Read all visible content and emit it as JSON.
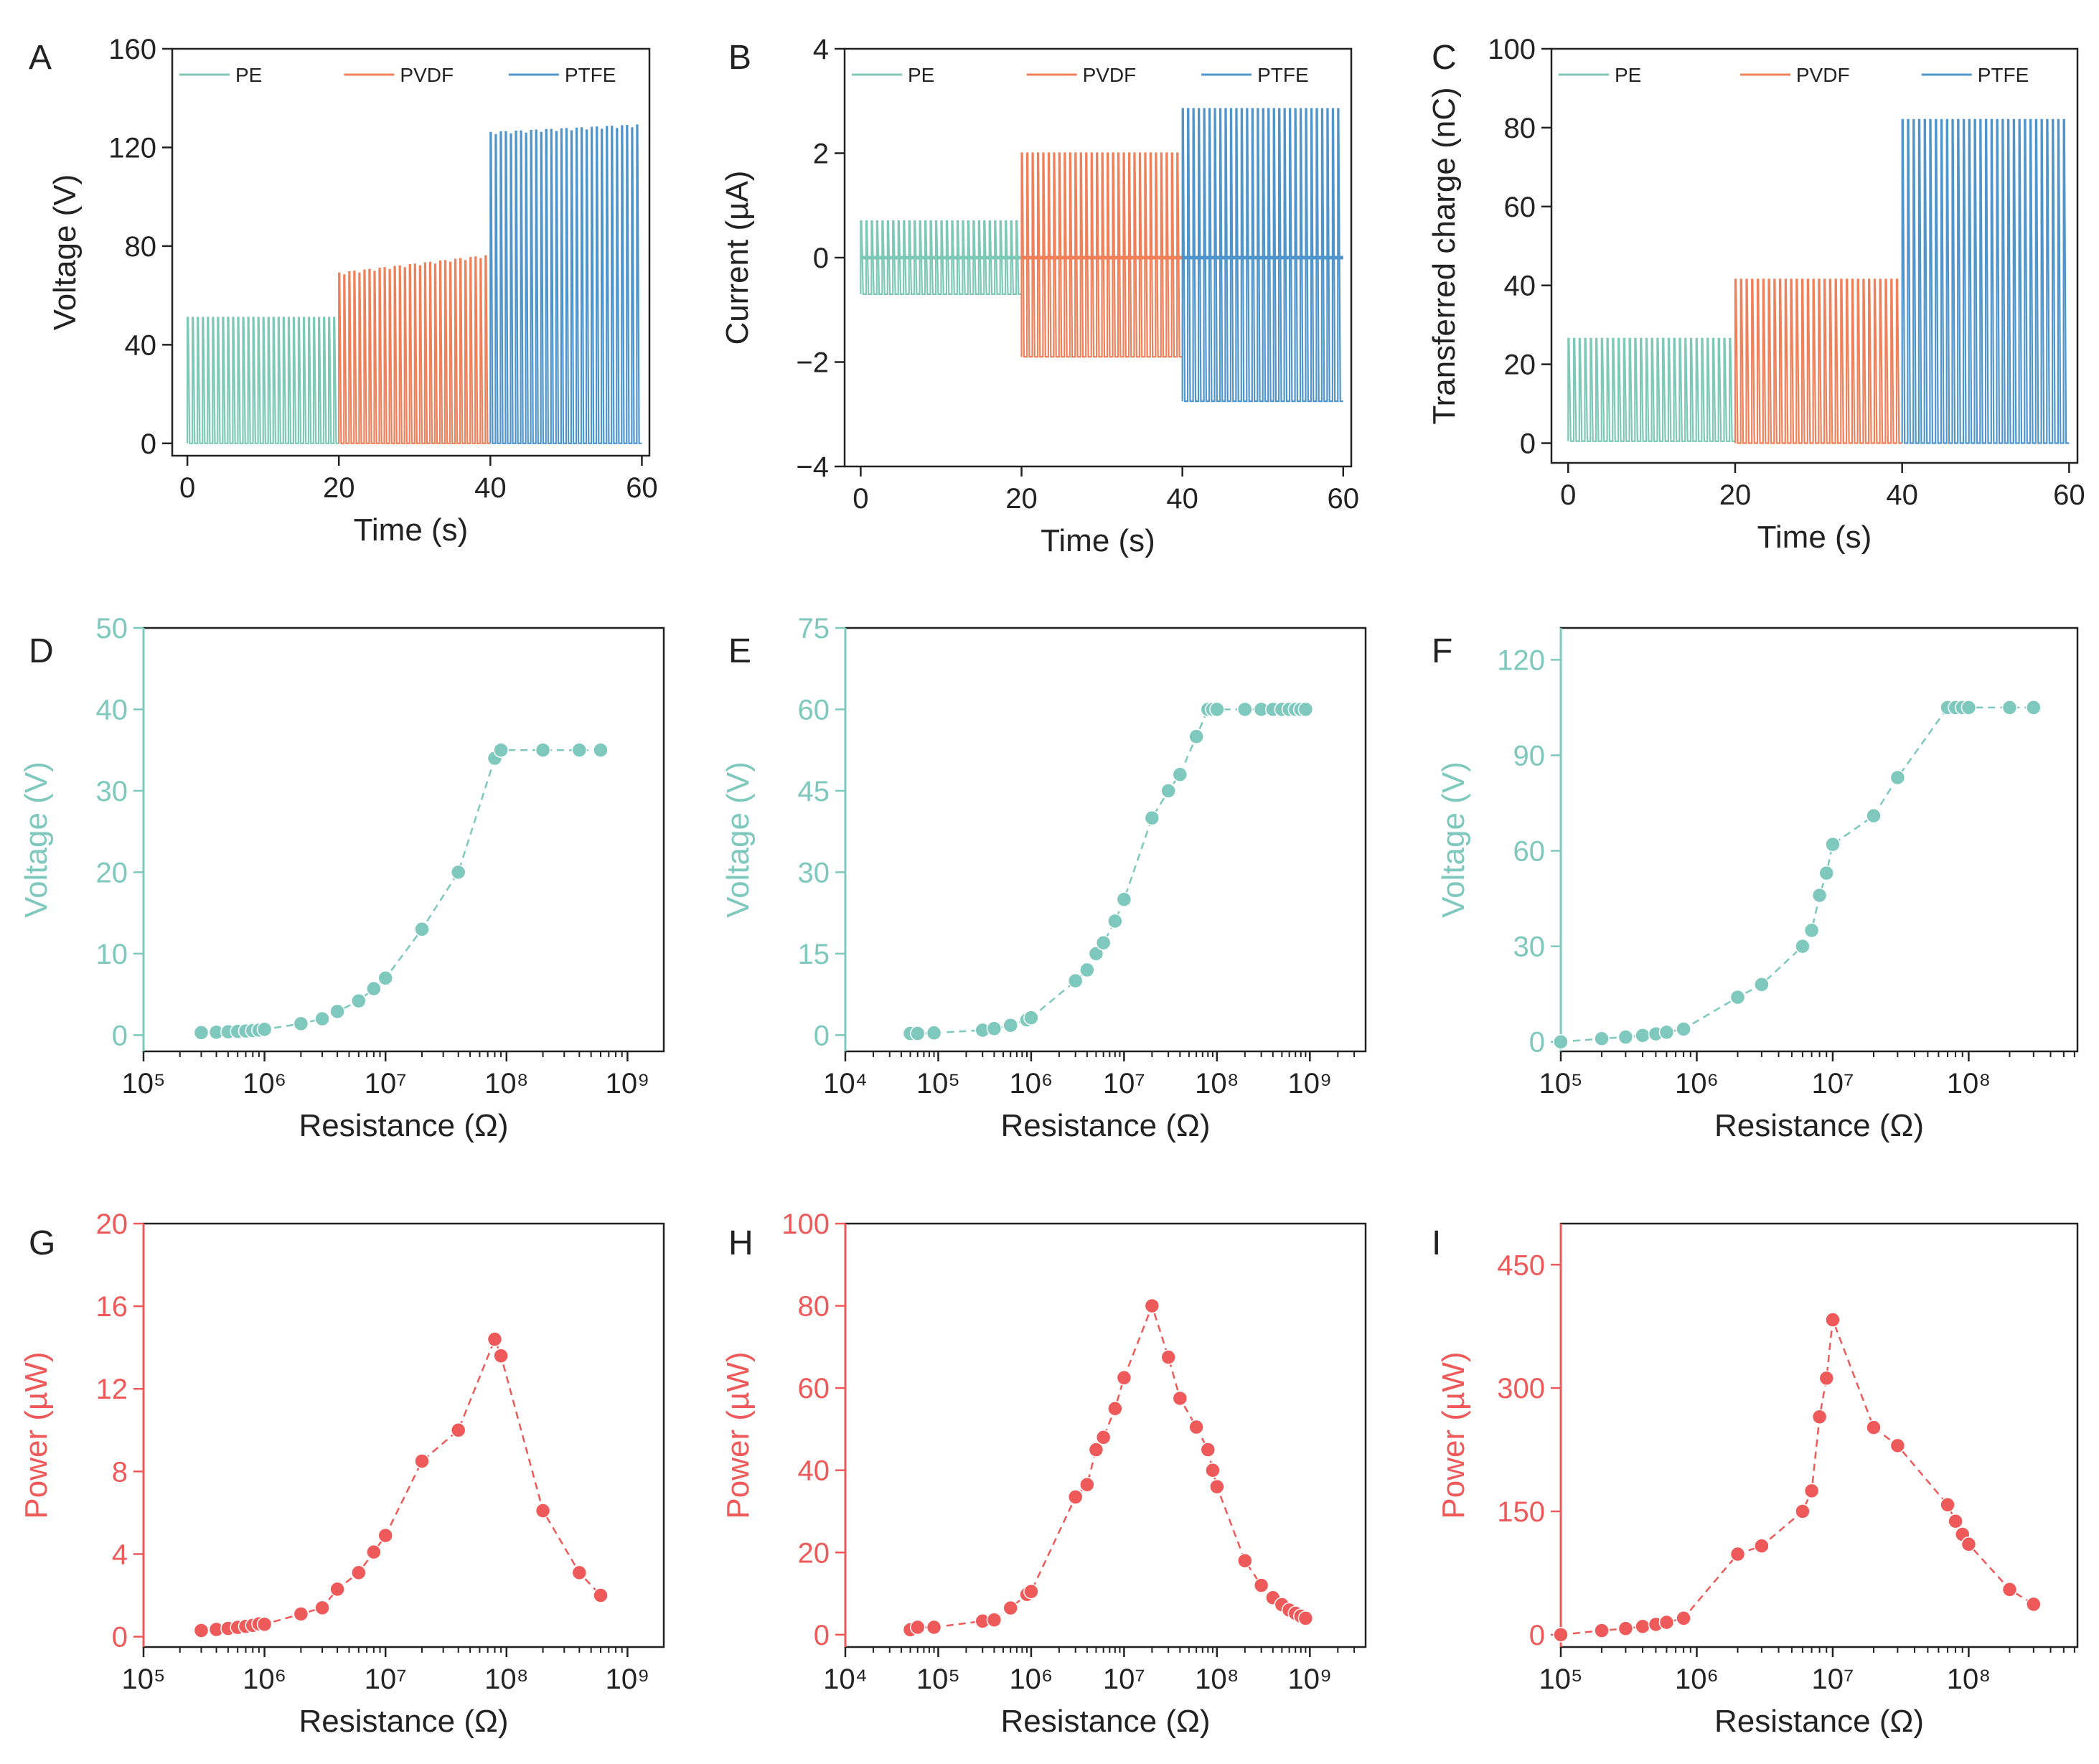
{
  "figure": {
    "colors": {
      "PE": "#7dc8b6",
      "PVDF": "#f0805a",
      "PTFE": "#4f95cc",
      "teal": "#7ec8bd",
      "red": "#ee5a5a",
      "black": "#222222"
    }
  },
  "chart_data": [
    {
      "panel": "A",
      "type": "line",
      "xlabel": "Time (s)",
      "ylabel": "Voltage (V)",
      "xlim": [
        -2,
        61
      ],
      "ylim": [
        -5,
        160
      ],
      "xticks": [
        0,
        20,
        40,
        60
      ],
      "yticks": [
        0,
        40,
        80,
        120,
        160
      ],
      "legend": [
        "PE",
        "PVDF",
        "PTFE"
      ],
      "legend_position": "top",
      "series": [
        {
          "name": "PE",
          "x_range": [
            0,
            20
          ],
          "pulses": 30,
          "low": 0,
          "high": 51
        },
        {
          "name": "PVDF",
          "x_range": [
            20,
            40
          ],
          "pulses": 30,
          "low": 0,
          "high": [
            69,
            76
          ]
        },
        {
          "name": "PTFE",
          "x_range": [
            40,
            60
          ],
          "pulses": 30,
          "low": 0,
          "high": [
            126,
            129
          ]
        }
      ]
    },
    {
      "panel": "B",
      "type": "line",
      "xlabel": "Time (s)",
      "ylabel": "Current (µA)",
      "xlim": [
        -2,
        61
      ],
      "ylim": [
        -4,
        4
      ],
      "xticks": [
        0,
        20,
        40,
        60
      ],
      "yticks": [
        -4,
        -2,
        0,
        2,
        4
      ],
      "legend": [
        "PE",
        "PVDF",
        "PTFE"
      ],
      "legend_position": "top",
      "series": [
        {
          "name": "PE",
          "x_range": [
            0,
            20
          ],
          "pulses": 30,
          "low": -0.7,
          "high": 0.7
        },
        {
          "name": "PVDF",
          "x_range": [
            20,
            40
          ],
          "pulses": 30,
          "low": -1.9,
          "high": 2.0
        },
        {
          "name": "PTFE",
          "x_range": [
            40,
            60
          ],
          "pulses": 30,
          "low": -2.75,
          "high": 2.85
        }
      ]
    },
    {
      "panel": "C",
      "type": "line",
      "xlabel": "Time (s)",
      "ylabel": "Transferred charge (nC)",
      "xlim": [
        -2,
        61
      ],
      "ylim": [
        -5,
        100
      ],
      "xticks": [
        0,
        20,
        40,
        60
      ],
      "yticks": [
        0,
        20,
        40,
        60,
        80,
        100
      ],
      "legend": [
        "PE",
        "PVDF",
        "PTFE"
      ],
      "legend_position": "top",
      "series": [
        {
          "name": "PE",
          "x_range": [
            0,
            20
          ],
          "pulses": 30,
          "low": 0.5,
          "high": 26.5
        },
        {
          "name": "PVDF",
          "x_range": [
            20,
            40
          ],
          "pulses": 30,
          "low": 0,
          "high": 41.5
        },
        {
          "name": "PTFE",
          "x_range": [
            40,
            60
          ],
          "pulses": 30,
          "low": 0,
          "high": 82
        }
      ]
    },
    {
      "panel": "D",
      "type": "scatter",
      "xscale": "log",
      "xlabel": "Resistance (Ω)",
      "ylabel": "Voltage (V)",
      "xlim_exp": [
        5,
        9.3
      ],
      "ylim": [
        -2,
        50
      ],
      "xticks_exp": [
        5,
        6,
        7,
        8,
        9
      ],
      "yticks": [
        0,
        10,
        20,
        30,
        40,
        50
      ],
      "x": [
        300000,
        400000,
        500000,
        600000,
        700000,
        800000,
        900000,
        1000000,
        2000000,
        3000000,
        4000000,
        6000000,
        8000000,
        10000000,
        20000000,
        40000000,
        80000000,
        90000000,
        200000000,
        400000000,
        600000000
      ],
      "y": [
        0.3,
        0.35,
        0.4,
        0.45,
        0.5,
        0.55,
        0.6,
        0.7,
        1.4,
        2.0,
        2.9,
        4.2,
        5.7,
        7.0,
        13.0,
        20.0,
        34.0,
        35.0,
        35.0,
        35.0,
        35.0
      ]
    },
    {
      "panel": "E",
      "type": "scatter",
      "xscale": "log",
      "xlabel": "Resistance (Ω)",
      "ylabel": "Voltage (V)",
      "xlim_exp": [
        4,
        9.6
      ],
      "ylim": [
        -3,
        75
      ],
      "xticks_exp": [
        4,
        5,
        6,
        7,
        8,
        9
      ],
      "yticks": [
        0,
        15,
        30,
        45,
        60,
        75
      ],
      "x": [
        50000,
        60000,
        90000,
        300000,
        400000,
        600000,
        900000,
        1000000,
        3000000,
        4000000,
        5000000,
        6000000,
        8000000,
        10000000,
        20000000,
        30000000,
        40000000,
        60000000,
        80000000,
        90000000,
        100000000,
        200000000,
        300000000,
        400000000,
        500000000,
        600000000,
        700000000,
        800000000,
        900000000
      ],
      "y": [
        0.3,
        0.3,
        0.4,
        0.9,
        1.2,
        1.8,
        2.8,
        3.2,
        10,
        12,
        15,
        17,
        21,
        25,
        40,
        45,
        48,
        55,
        60,
        60,
        60,
        60,
        60,
        60,
        60,
        60,
        60,
        60,
        60
      ]
    },
    {
      "panel": "F",
      "type": "scatter",
      "xscale": "log",
      "xlabel": "Resistance (Ω)",
      "ylabel": "Voltage (V)",
      "xlim_exp": [
        5,
        8.8
      ],
      "ylim": [
        -3,
        130
      ],
      "xticks_exp": [
        5,
        6,
        7,
        8
      ],
      "yticks": [
        0,
        30,
        60,
        90,
        120
      ],
      "x": [
        100000,
        200000,
        300000,
        400000,
        500000,
        600000,
        800000,
        2000000,
        3000000,
        6000000,
        7000000,
        8000000,
        9000000,
        10000000,
        20000000,
        30000000,
        70000000,
        80000000,
        90000000,
        100000000,
        200000000,
        300000000
      ],
      "y": [
        0,
        1,
        1.5,
        2,
        2.5,
        3,
        4,
        14,
        18,
        30,
        35,
        46,
        53,
        62,
        71,
        83,
        105,
        105,
        105,
        105,
        105,
        105
      ]
    },
    {
      "panel": "G",
      "type": "scatter",
      "xscale": "log",
      "xlabel": "Resistance (Ω)",
      "ylabel": "Power (µW)",
      "xlim_exp": [
        5,
        9.3
      ],
      "ylim": [
        -0.5,
        20
      ],
      "xticks_exp": [
        5,
        6,
        7,
        8,
        9
      ],
      "yticks": [
        0,
        4,
        8,
        12,
        16,
        20
      ],
      "x": [
        300000,
        400000,
        500000,
        600000,
        700000,
        800000,
        900000,
        1000000,
        2000000,
        3000000,
        4000000,
        6000000,
        8000000,
        10000000,
        20000000,
        40000000,
        80000000,
        90000000,
        200000000,
        400000000,
        600000000
      ],
      "y": [
        0.3,
        0.35,
        0.4,
        0.45,
        0.5,
        0.55,
        0.62,
        0.6,
        1.1,
        1.4,
        2.3,
        3.1,
        4.1,
        4.9,
        8.5,
        10.0,
        14.4,
        13.6,
        6.1,
        3.1,
        2.0
      ]
    },
    {
      "panel": "H",
      "type": "scatter",
      "xscale": "log",
      "xlabel": "Resistance (Ω)",
      "ylabel": "Power (µW)",
      "xlim_exp": [
        4,
        9.6
      ],
      "ylim": [
        -3,
        100
      ],
      "xticks_exp": [
        4,
        5,
        6,
        7,
        8,
        9
      ],
      "yticks": [
        0,
        20,
        40,
        60,
        80,
        100
      ],
      "x": [
        50000,
        60000,
        90000,
        300000,
        400000,
        600000,
        900000,
        1000000,
        3000000,
        4000000,
        5000000,
        6000000,
        8000000,
        10000000,
        20000000,
        30000000,
        40000000,
        60000000,
        80000000,
        90000000,
        100000000,
        200000000,
        300000000,
        400000000,
        500000000,
        600000000,
        700000000,
        800000000,
        900000000
      ],
      "y": [
        1.2,
        1.8,
        1.8,
        3.3,
        3.6,
        6.5,
        9.8,
        10.5,
        33.5,
        36.5,
        45,
        48,
        55,
        62.5,
        80,
        67.5,
        57.5,
        50.5,
        45,
        40,
        36,
        18,
        12,
        9,
        7.3,
        6,
        5.2,
        4.5,
        4
      ]
    },
    {
      "panel": "I",
      "type": "scatter",
      "xscale": "log",
      "xlabel": "Resistance (Ω)",
      "ylabel": "Power (µW)",
      "xlim_exp": [
        5,
        8.8
      ],
      "ylim": [
        -15,
        500
      ],
      "xticks_exp": [
        5,
        6,
        7,
        8
      ],
      "yticks": [
        0,
        150,
        300,
        450
      ],
      "x": [
        100000,
        200000,
        300000,
        400000,
        500000,
        600000,
        800000,
        2000000,
        3000000,
        6000000,
        7000000,
        8000000,
        9000000,
        10000000,
        20000000,
        30000000,
        70000000,
        80000000,
        90000000,
        100000000,
        200000000,
        300000000
      ],
      "y": [
        0,
        5,
        7.5,
        10,
        12.5,
        15,
        20,
        98,
        108,
        150,
        175,
        265,
        312,
        383,
        252,
        230,
        158,
        138,
        122,
        110,
        55,
        37
      ]
    }
  ]
}
